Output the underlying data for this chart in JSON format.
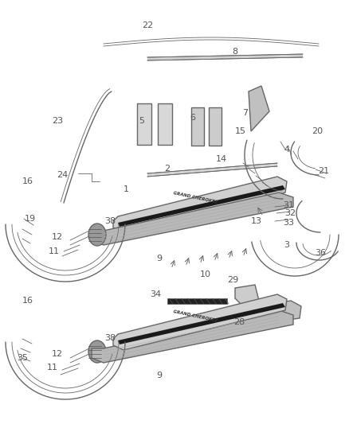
{
  "bg_color": "#ffffff",
  "line_color": "#666666",
  "label_color": "#555555",
  "lw_main": 1.0,
  "lw_thin": 0.6,
  "figsize": [
    4.38,
    5.33
  ],
  "dpi": 100
}
